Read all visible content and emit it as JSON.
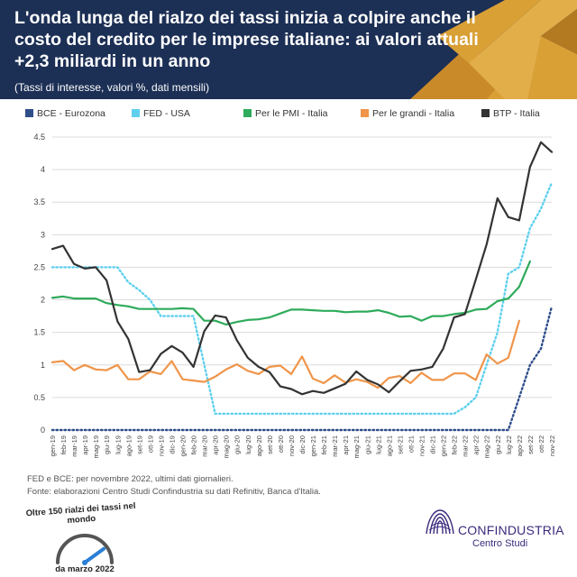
{
  "header": {
    "title": "L'onda lunga del rialzo dei tassi inizia a colpire anche il costo del credito per le imprese italiane: ai valori attuali +2,3 miliardi in un anno",
    "subtitle": "(Tassi di interesse, valori %, dati mensili)",
    "colors": {
      "background": "#1c2f55",
      "accent": "#d9a036"
    }
  },
  "chart_data": {
    "type": "line",
    "x": [
      "gen-19",
      "feb-19",
      "mar-19",
      "apr-19",
      "mag-19",
      "giu-19",
      "lug-19",
      "ago-19",
      "set-19",
      "ott-19",
      "nov-19",
      "dic-19",
      "gen-20",
      "feb-20",
      "mar-20",
      "apr-20",
      "mag-20",
      "giu-20",
      "lug-20",
      "ago-20",
      "set-20",
      "ott-20",
      "nov-20",
      "dic-20",
      "gen-21",
      "feb-21",
      "mar-21",
      "apr-21",
      "mag-21",
      "giu-21",
      "lug-21",
      "ago-21",
      "set-21",
      "ott-21",
      "nov-21",
      "dic-21",
      "gen-22",
      "feb-22",
      "mar-22",
      "apr-22",
      "mag-22",
      "giu-22",
      "lug-22",
      "ago-22",
      "set-22",
      "ott-22",
      "nov-22"
    ],
    "ylim": [
      0,
      4.5
    ],
    "yticks": [
      0,
      0.5,
      1,
      1.5,
      2,
      2.5,
      3,
      3.5,
      4,
      4.5
    ],
    "ytick_labels": [
      "0",
      "0.5",
      "1",
      "1.5",
      "2",
      "2.5",
      "3",
      "3.5",
      "4",
      "4.5"
    ],
    "grid": true,
    "legend_position": "top",
    "series": [
      {
        "name": "BCE - Eurozona",
        "color": "#2e4e8a",
        "dash": "dotted",
        "values": [
          0,
          0,
          0,
          0,
          0,
          0,
          0,
          0,
          0,
          0,
          0,
          0,
          0,
          0,
          0,
          0,
          0,
          0,
          0,
          0,
          0,
          0,
          0,
          0,
          0,
          0,
          0,
          0,
          0,
          0,
          0,
          0,
          0,
          0,
          0,
          0,
          0,
          0,
          0,
          0,
          0,
          0,
          0,
          0.5,
          1.0,
          1.25,
          1.9
        ]
      },
      {
        "name": "FED - USA",
        "color": "#5fd0ee",
        "dash": "dotted",
        "values": [
          2.5,
          2.5,
          2.5,
          2.5,
          2.5,
          2.5,
          2.5,
          2.27,
          2.15,
          2.0,
          1.75,
          1.75,
          1.75,
          1.75,
          1.0,
          0.25,
          0.25,
          0.25,
          0.25,
          0.25,
          0.25,
          0.25,
          0.25,
          0.25,
          0.25,
          0.25,
          0.25,
          0.25,
          0.25,
          0.25,
          0.25,
          0.25,
          0.25,
          0.25,
          0.25,
          0.25,
          0.25,
          0.25,
          0.35,
          0.5,
          1.0,
          1.5,
          2.4,
          2.5,
          3.1,
          3.4,
          3.8
        ]
      },
      {
        "name": "Per le PMI - Italia",
        "color": "#2eab5b",
        "dash": "solid",
        "values": [
          2.03,
          2.05,
          2.02,
          2.02,
          2.02,
          1.95,
          1.92,
          1.9,
          1.86,
          1.86,
          1.86,
          1.86,
          1.87,
          1.86,
          1.68,
          1.68,
          1.62,
          1.66,
          1.69,
          1.7,
          1.73,
          1.79,
          1.85,
          1.85,
          1.84,
          1.83,
          1.83,
          1.81,
          1.82,
          1.82,
          1.84,
          1.8,
          1.74,
          1.75,
          1.68,
          1.75,
          1.75,
          1.78,
          1.8,
          1.85,
          1.86,
          1.98,
          2.02,
          2.2,
          2.59,
          null,
          null
        ]
      },
      {
        "name": "Per le grandi - Italia",
        "color": "#f0954a",
        "dash": "solid",
        "values": [
          1.04,
          1.06,
          0.92,
          1.0,
          0.93,
          0.92,
          1.0,
          0.78,
          0.78,
          0.9,
          0.86,
          1.06,
          0.78,
          0.76,
          0.74,
          0.82,
          0.93,
          1.01,
          0.91,
          0.86,
          0.97,
          0.99,
          0.86,
          1.13,
          0.79,
          0.72,
          0.84,
          0.73,
          0.78,
          0.74,
          0.65,
          0.8,
          0.83,
          0.72,
          0.88,
          0.77,
          0.77,
          0.87,
          0.87,
          0.77,
          1.16,
          1.02,
          1.11,
          1.68,
          null,
          null,
          null
        ]
      },
      {
        "name": "BTP - Italia",
        "color": "#333333",
        "dash": "solid",
        "values": [
          2.78,
          2.83,
          2.55,
          2.48,
          2.5,
          2.3,
          1.67,
          1.4,
          0.89,
          0.92,
          1.17,
          1.29,
          1.19,
          0.97,
          1.52,
          1.76,
          1.73,
          1.38,
          1.11,
          0.97,
          0.89,
          0.67,
          0.63,
          0.55,
          0.6,
          0.57,
          0.64,
          0.71,
          0.9,
          0.77,
          0.7,
          0.58,
          0.75,
          0.91,
          0.93,
          0.97,
          1.25,
          1.73,
          1.78,
          2.31,
          2.85,
          3.56,
          3.27,
          3.22,
          4.04,
          4.42,
          4.27
        ]
      }
    ]
  },
  "footnotes": {
    "line1": "FED e BCE: per novembre 2022, ultimi dati giornalieri.",
    "line2": "Fonte: elaborazioni Centro Studi Confindustria su dati Refinitiv, Banca d'Italia."
  },
  "gauge": {
    "top_text": "Oltre 150 rialzi dei tassi nel mondo",
    "bottom_text": "da marzo 2022",
    "needle_fraction": 0.8
  },
  "logo": {
    "name": "CONFINDUSTRIA",
    "sub": "Centro Studi",
    "icon": "confindustria-logo-icon"
  }
}
